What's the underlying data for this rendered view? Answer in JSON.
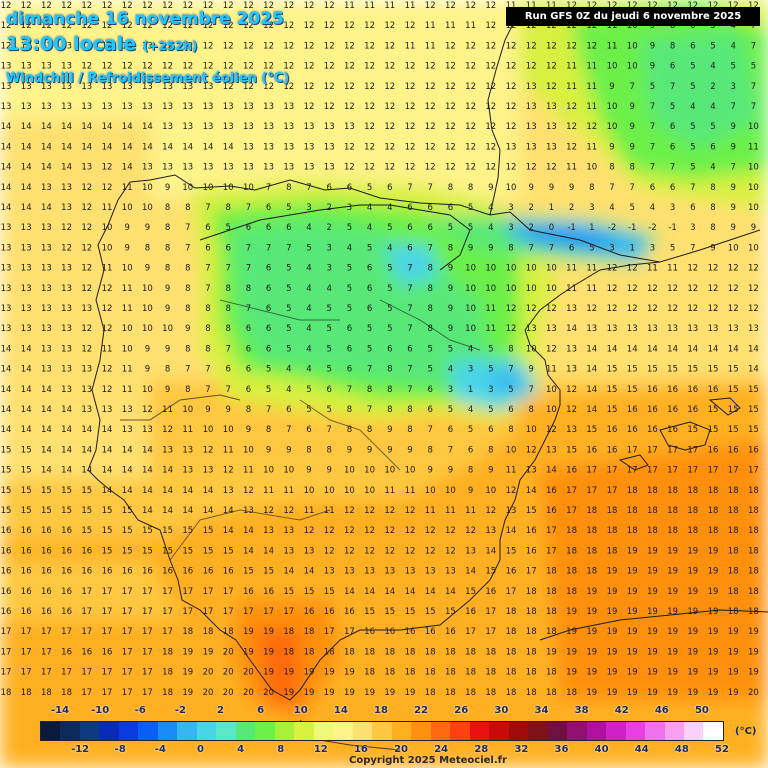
{
  "header": {
    "date": "dimanche 16 novembre 2025",
    "time": "13:00 locale",
    "lead": "(+252h)",
    "parameter": "Windchill / Refroidissement éolien (°C)"
  },
  "run_banner": "Run GFS 0Z du jeudi 6 novembre 2025",
  "legend": {
    "unit": "(°C)",
    "labels_top": [
      "-14",
      "-10",
      "-6",
      "-2",
      "2",
      "6",
      "10",
      "14",
      "18",
      "22",
      "26",
      "30",
      "34",
      "38",
      "42",
      "46",
      "50"
    ],
    "labels_bottom": [
      "-12",
      "-8",
      "-4",
      "0",
      "4",
      "8",
      "12",
      "16",
      "20",
      "24",
      "28",
      "32",
      "36",
      "40",
      "44",
      "48",
      "52"
    ],
    "colors": [
      "#0a1a3c",
      "#0d2a5c",
      "#103a80",
      "#0a2ab8",
      "#0a3ae0",
      "#0a5ef5",
      "#1a8af5",
      "#36b6f0",
      "#4ad4e8",
      "#58e8c8",
      "#58e878",
      "#6cf04a",
      "#a8f03a",
      "#d8f040",
      "#f0f878",
      "#fff38a",
      "#ffe070",
      "#ffc840",
      "#ffb020",
      "#ff9010",
      "#ff6a10",
      "#ff4010",
      "#e81010",
      "#c80a0a",
      "#a00a0a",
      "#80101a",
      "#701040",
      "#901070",
      "#b010a0",
      "#d020c8",
      "#e840e0",
      "#f070f0",
      "#f8a0f0",
      "#fcd0f8",
      "#ffffff"
    ]
  },
  "copyright": "Copyright 2025 Meteociel.fr",
  "map": {
    "region": "Iberian Peninsula",
    "number_grid_rows": [
      "12 12 12 12 12 12 12 12 12 12 12 12 12 12 12 12 12 11 11 11 11 12 12 12 12 11 11 11 12 12 12 12 12 12 12 12 12 12",
      "12 12 12 12 12 12 12 12 12 12 12 12 12 12 12 12 12 12 12 12 12 11 11 11 12 12 12 12 12 12 11 10 9 8 6 5 4 7 6 7",
      "12 13 13 13 13 13 13 13 12 12 12 12 12 12 12 12 12 12 12 12 11 11 12 12 12 12 12 12 12 12 11 10 9 8 6 5 4 7 6 8",
      "13 13 13 13 12 12 12 12 12 12 12 12 12 12 12 12 12 12 12 12 12 12 12 12 12 12 12 12 11 11 10 10 9 6 5 4 5 5 6",
      "13 13 13 13 13 13 13 13 13 13 13 12 12 12 12 12 12 12 12 12 12 12 12 12 12 12 13 12 11 11 9 7 5 7 5 2 3 7",
      "13 13 13 13 13 13 13 13 13 13 13 13 13 13 13 12 12 12 12 12 12 12 12 12 12 12 13 13 12 11 10 9 7 5 4 4 7 7",
      "14 14 14 14 14 14 14 14 13 13 13 13 13 13 13 13 13 13 12 12 12 12 12 12 12 12 13 13 12 12 10 9 7 6 5 5 9 10",
      "14 14 14 14 14 14 14 14 14 14 14 14 13 13 13 13 13 12 12 12 12 12 12 12 12 13 13 13 12 11 9 9 7 6 5 6 9 11",
      "14 14 14 14 13 12 14 13 13 13 13 13 13 13 13 13 13 12 12 12 12 12 12 12 12 12 12 12 11 10 8 8 7 7 5 4 7 10",
      "14 14 13 13 12 12 11 10 9 10 10 10 10 7 8 7 6 6 5 6 7 7 8 8 9 10 9 9 9 8 7 7 6 6 7 8 9 10",
      "14 14 14 13 12 11 10 10 8 8 7 8 7 6 5 3 2 3 4 4 6 6 6 5 4 3 2 1 2 3 4 5 4 3 6 8 9 10",
      "13 13 13 12 12 10 9 9 8 7 6 5 6 6 6 4 2 5 4 5 6 6 5 5 4 3 2 0 -1 1 -2 -1 -2 -1 3 8 9 9",
      "13 13 13 12 12 10 9 8 8 7 6 6 7 7 7 5 3 4 5 4 6 7 8 9 9 8 7 7 6 5 3 1 3 5 7 9 10 10",
      "13 13 13 13 12 11 10 9 8 8 7 7 7 6 5 4 3 5 6 5 7 8 9 10 10 10 10 10 11 11 12 12 11 11 12 12 12 12",
      "13 13 13 13 12 12 11 10 9 8 7 8 8 6 5 4 4 5 6 5 7 8 9 10 10 10 10 10 11 11 12 12 12 12 12 12 12 12",
      "13 13 13 13 13 12 11 10 9 8 8 8 7 6 5 4 5 5 6 5 7 8 9 10 11 12 12 12 13 12 12 12 12 12 12 12 12 12",
      "13 13 13 13 12 12 10 10 10 9 8 8 6 6 5 4 5 6 5 5 7 8 9 10 11 12 13 13 14 13 13 13 13 13 13 13 13 13",
      "14 14 13 13 12 11 10 9 9 8 8 7 6 6 5 4 5 6 5 6 6 5 5 4 5 8 10 12 13 14 14 14 14 14 14 14 14 14",
      "14 14 13 13 13 12 11 9 8 7 7 6 6 5 4 4 5 6 7 8 7 5 4 3 5 7 9 11 13 14 15 15 15 15 15 15 15 14",
      "14 14 14 13 13 12 11 10 9 8 7 7 6 5 4 5 6 7 8 8 7 6 3 1 3 5 7 10 12 14 15 15 16 16 16 16 15 15",
      "14 14 14 14 13 13 13 12 11 10 9 9 8 7 6 5 5 8 7 8 8 6 5 4 5 6 8 10 12 14 15 16 16 16 16 15 15 15",
      "14 14 14 14 14 14 13 13 12 11 10 10 9 8 7 6 7 8 8 9 8 7 6 5 6 8 10 12 13 15 16 16 16 16 15 15 15 15",
      "15 15 14 14 14 14 14 14 13 13 12 11 10 9 9 8 8 9 9 9 9 8 7 6 8 10 12 13 15 16 16 17 17 17 17 16 16 16",
      "15 15 14 14 14 14 14 14 14 13 13 12 11 10 10 9 9 10 10 10 10 9 9 8 9 11 13 14 16 17 17 17 17 17 17 17 17 17",
      "15 15 15 15 15 14 14 14 14 14 14 13 12 11 11 10 10 10 10 11 11 10 10 9 10 12 14 16 17 17 17 18 18 18 18 18 18 18",
      "15 15 15 15 15 15 15 14 14 14 14 14 13 12 12 11 11 12 12 12 12 11 11 11 12 13 15 16 17 18 18 18 18 18 18 18 18 18",
      "16 16 16 16 15 15 15 15 15 15 15 14 14 13 13 12 12 12 12 12 12 12 12 12 13 14 16 17 18 18 18 18 18 18 18 18 18 18",
      "16 16 16 16 16 15 15 15 15 15 15 15 14 14 13 13 12 12 12 12 12 12 12 13 14 15 16 17 18 18 18 19 19 19 19 19 18 18",
      "16 16 16 16 16 16 16 16 16 16 16 16 15 15 14 14 13 13 13 13 13 13 13 14 15 16 17 18 18 18 19 19 19 19 19 19 18 18",
      "16 16 16 16 17 17 17 17 17 17 17 17 16 16 15 15 15 14 14 14 14 14 14 15 16 17 18 18 18 19 19 19 19 19 19 19 18 18",
      "16 16 16 16 17 17 17 17 17 17 17 17 17 17 17 16 16 16 15 15 15 15 15 16 17 18 18 18 19 19 19 19 19 19 19 19 18 18",
      "17 17 17 17 17 17 17 17 17 18 18 18 19 19 18 18 17 17 16 16 16 16 16 17 17 18 18 18 19 19 19 19 19 19 19 19 19 19",
      "17 17 17 16 16 16 17 17 18 19 19 20 19 19 18 18 18 18 18 18 18 18 18 18 18 18 18 19 19 19 19 19 19 19 19 19 19 19",
      "17 17 17 17 17 17 17 17 18 19 20 20 20 19 19 19 19 19 18 18 18 18 18 18 18 18 18 18 19 19 19 19 19 19 19 19 19 19",
      "18 18 18 18 17 17 17 17 18 19 20 20 20 20 19 19 19 19 19 19 19 18 18 18 18 18 18 18 18 19 19 19 19 19 19 19 19 20",
      "18 18 18 18 18 18 18 18 18 19 19 20 20 20 20 20 20 20 19 19 19 18 18 18 18 18 18 18 18 18 19 19 19 19 19 19 19 19",
      "18 19 19 19 19 19 19 19 19 19 20 20 20 21 21 21 20 20 20 20 20 20 19 19 19 18 18 18 18 18 19 19 19 19 19 19 19 19",
      "19 19 19 19 19 19 19 19 19 19 20 20 20 22 21 20 20 20 20 20 20 20 20 19 19 19 19 19 19 19 19 19 19 19 19 19 19 19"
    ]
  }
}
